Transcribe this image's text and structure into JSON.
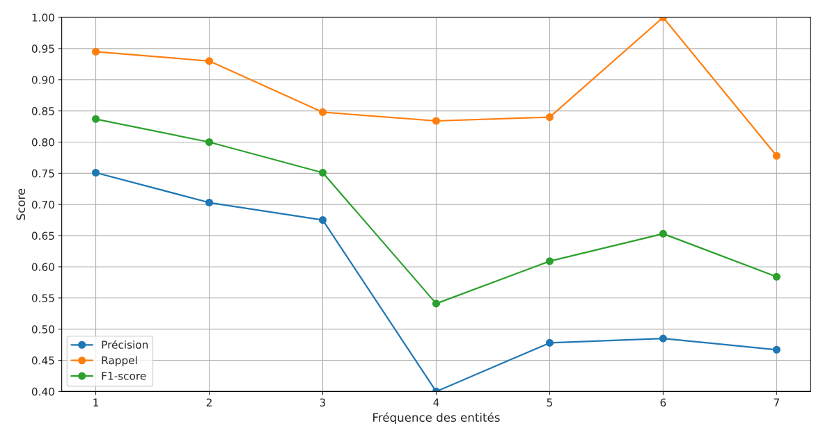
{
  "chart_data": {
    "type": "line",
    "xlabel": "Fréquence des entités",
    "ylabel": "Score",
    "x": [
      1,
      2,
      3,
      4,
      5,
      6,
      7
    ],
    "series": [
      {
        "name": "Précision",
        "color": "#1f77b4",
        "values": [
          0.751,
          0.703,
          0.675,
          0.4,
          0.478,
          0.485,
          0.467
        ]
      },
      {
        "name": "Rappel",
        "color": "#ff7f0e",
        "values": [
          0.945,
          0.93,
          0.848,
          0.834,
          0.84,
          1.0,
          0.778
        ]
      },
      {
        "name": "F1-score",
        "color": "#2ca02c",
        "values": [
          0.837,
          0.8,
          0.751,
          0.541,
          0.609,
          0.653,
          0.584
        ]
      }
    ],
    "xlim": [
      0.7,
      7.3
    ],
    "xticks": [
      1,
      2,
      3,
      4,
      5,
      6,
      7
    ],
    "ylim": [
      0.4,
      1.0
    ],
    "yticks": [
      {
        "value": 0.4,
        "label": "0.40"
      },
      {
        "value": 0.45,
        "label": "0.45"
      },
      {
        "value": 0.5,
        "label": "0.50"
      },
      {
        "value": 0.55,
        "label": "0.55"
      },
      {
        "value": 0.6,
        "label": "0.60"
      },
      {
        "value": 0.65,
        "label": "0.65"
      },
      {
        "value": 0.7,
        "label": "0.70"
      },
      {
        "value": 0.75,
        "label": "0.75"
      },
      {
        "value": 0.8,
        "label": "0.80"
      },
      {
        "value": 0.85,
        "label": "0.85"
      },
      {
        "value": 0.9,
        "label": "0.90"
      },
      {
        "value": 0.95,
        "label": "0.95"
      },
      {
        "value": 1.0,
        "label": "1.00"
      }
    ],
    "grid": true,
    "legend": "bottom left",
    "marker": "circle",
    "line_style": "solid"
  }
}
